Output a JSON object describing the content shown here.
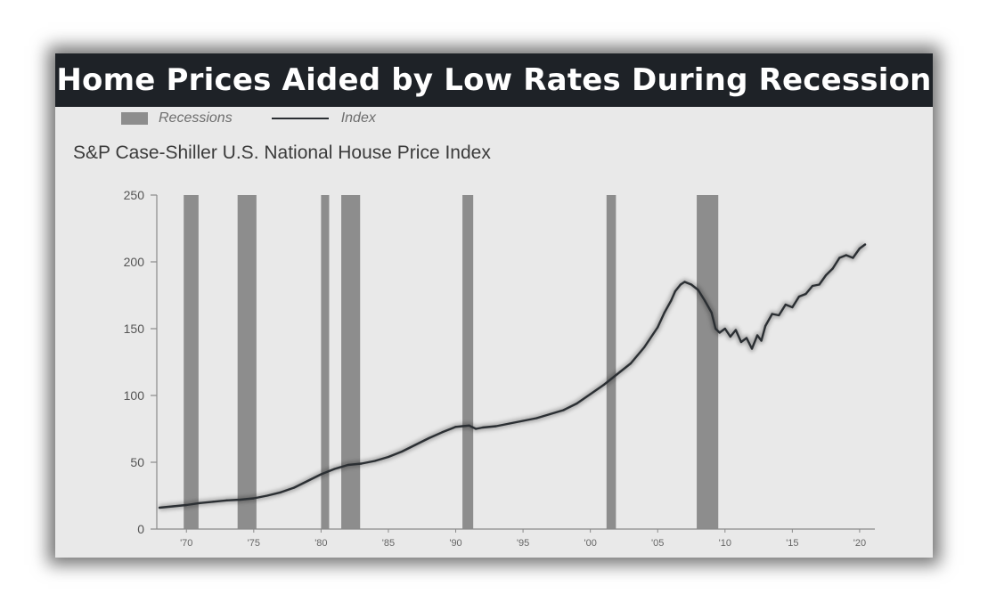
{
  "title": "Home Prices Aided by Low Rates During Recession",
  "legend": {
    "recessions": "Recessions",
    "index": "Index"
  },
  "colors": {
    "title_bg": "#1e2227",
    "panel_bg": "#e9e9e9",
    "recession": "#8d8d8d",
    "line": "#2b2f33",
    "axis": "#8a8a8a"
  },
  "chart_data": {
    "type": "line",
    "title": "S&P Case-Shiller U.S. National House Price Index",
    "xlabel": "",
    "ylabel": "",
    "ylim": [
      0,
      250
    ],
    "xlim": [
      1967.8,
      2020.6
    ],
    "yticks": [
      0,
      50,
      100,
      150,
      200,
      250
    ],
    "ytick_labels": [
      "0",
      "50",
      "100",
      "150",
      "200",
      "250"
    ],
    "xticks": [
      1970,
      1975,
      1980,
      1985,
      1990,
      1995,
      2000,
      2005,
      2010,
      2015,
      2020
    ],
    "xtick_labels": [
      "'70",
      "'75",
      "'80",
      "'85",
      "'90",
      "'95",
      "'00",
      "'05",
      "'10",
      "'15",
      "'20"
    ],
    "recessions": [
      {
        "start": 1969.8,
        "end": 1970.9
      },
      {
        "start": 1973.8,
        "end": 1975.2
      },
      {
        "start": 1980.0,
        "end": 1980.6
      },
      {
        "start": 1981.5,
        "end": 1982.9
      },
      {
        "start": 1990.5,
        "end": 1991.3
      },
      {
        "start": 2001.2,
        "end": 2001.9
      },
      {
        "start": 2007.9,
        "end": 2009.5
      }
    ],
    "series": [
      {
        "name": "Index",
        "x": [
          1968.0,
          1969.0,
          1970.0,
          1971.0,
          1972.0,
          1973.0,
          1974.0,
          1975.0,
          1976.0,
          1977.0,
          1978.0,
          1979.0,
          1980.0,
          1981.0,
          1982.0,
          1983.0,
          1984.0,
          1985.0,
          1986.0,
          1987.0,
          1988.0,
          1989.0,
          1990.0,
          1990.5,
          1991.0,
          1991.5,
          1992.0,
          1993.0,
          1994.0,
          1995.0,
          1996.0,
          1997.0,
          1998.0,
          1999.0,
          2000.0,
          2001.0,
          2002.0,
          2003.0,
          2004.0,
          2005.0,
          2005.5,
          2006.0,
          2006.3,
          2006.7,
          2007.0,
          2007.5,
          2008.0,
          2008.5,
          2009.0,
          2009.3,
          2009.6,
          2010.0,
          2010.4,
          2010.8,
          2011.2,
          2011.6,
          2012.0,
          2012.4,
          2012.7,
          2013.0,
          2013.5,
          2014.0,
          2014.5,
          2015.0,
          2015.5,
          2016.0,
          2016.5,
          2017.0,
          2017.5,
          2018.0,
          2018.5,
          2019.0,
          2019.5,
          2020.0,
          2020.4
        ],
        "values": [
          16,
          17,
          18,
          19.5,
          20.5,
          21.5,
          22,
          23,
          25,
          27.5,
          31,
          36,
          41,
          45,
          48,
          49,
          51,
          54,
          58,
          63,
          68,
          72.5,
          76.5,
          77,
          77.5,
          75,
          76,
          77,
          79,
          81,
          83,
          86,
          89,
          94,
          101,
          108,
          116,
          124,
          136,
          151,
          162,
          171,
          178,
          183,
          185,
          183,
          179,
          171,
          162,
          150,
          147,
          150,
          144,
          149,
          140,
          143,
          135,
          145,
          141,
          152,
          161,
          160,
          168,
          166,
          174,
          176,
          182,
          183,
          190,
          195,
          203,
          205,
          203,
          210,
          213
        ]
      }
    ]
  }
}
